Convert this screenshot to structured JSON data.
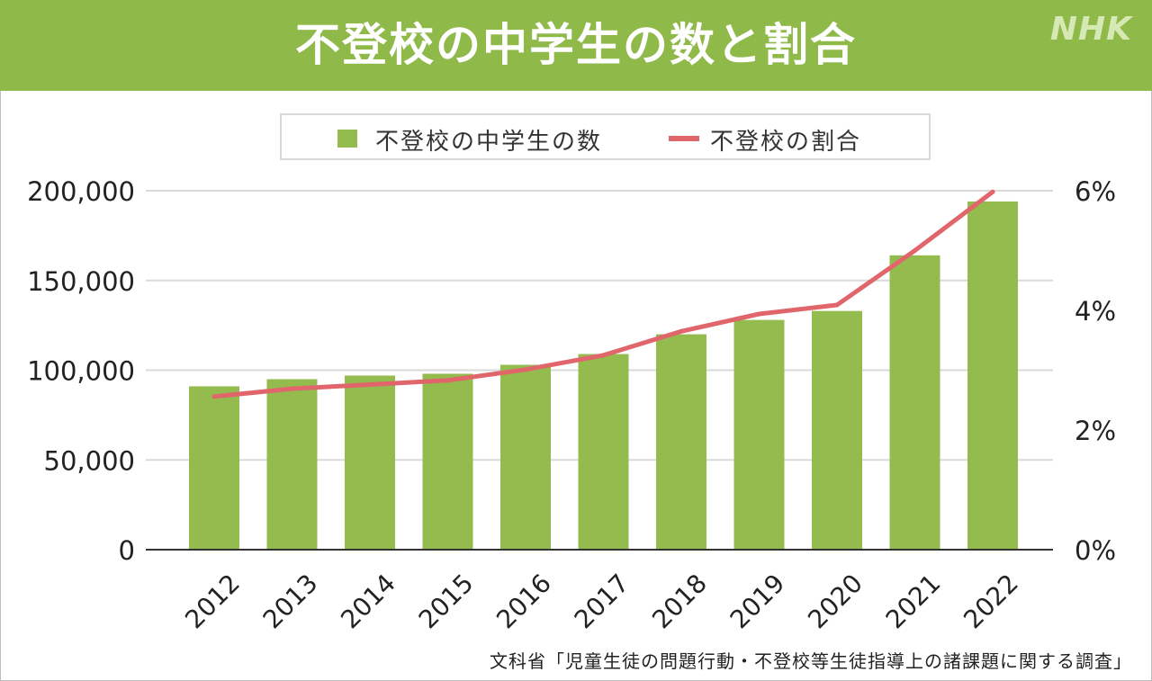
{
  "header": {
    "title": "不登校の中学生の数と割合",
    "logo": "NHK"
  },
  "source": "文科省「児童生徒の問題行動・不登校等生徒指導上の諸課題に関する調査」",
  "colors": {
    "header_bg": "#8fba4a",
    "bar": "#93bb4e",
    "line": "#e0666c",
    "grid": "#d9d9d9"
  },
  "chart_data": {
    "type": "bar",
    "categories": [
      "2012",
      "2013",
      "2014",
      "2015",
      "2016",
      "2017",
      "2018",
      "2019",
      "2020",
      "2021",
      "2022"
    ],
    "series": [
      {
        "name": "不登校の中学生の数",
        "type": "bar",
        "axis": "left",
        "values": [
          91000,
          95000,
          97000,
          98000,
          103000,
          109000,
          120000,
          128000,
          133000,
          164000,
          194000
        ]
      },
      {
        "name": "不登校の割合",
        "type": "line",
        "axis": "right",
        "values": [
          2.56,
          2.69,
          2.76,
          2.83,
          3.01,
          3.25,
          3.65,
          3.94,
          4.09,
          5.0,
          5.98
        ]
      }
    ],
    "y_left": {
      "ylim": [
        0,
        200000
      ],
      "ticks": [
        "0",
        "50,000",
        "100,000",
        "150,000",
        "200,000"
      ],
      "tick_values": [
        0,
        50000,
        100000,
        150000,
        200000
      ]
    },
    "y_right": {
      "ylim": [
        0,
        6
      ],
      "ticks": [
        "0%",
        "2%",
        "4%",
        "6%"
      ],
      "tick_values": [
        0,
        2,
        4,
        6
      ]
    },
    "grid": true,
    "legend_position": "top-center"
  }
}
